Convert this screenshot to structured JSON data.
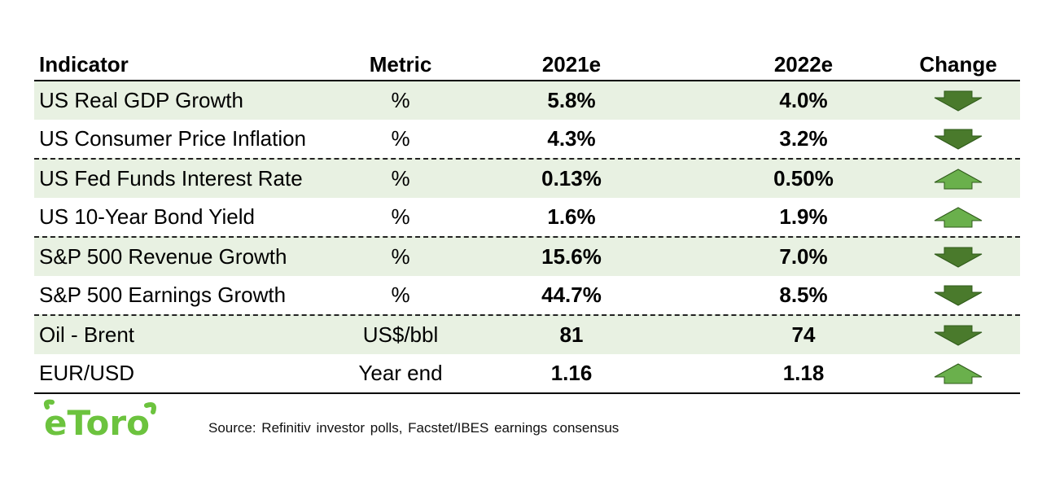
{
  "colors": {
    "shade": "#e8f1e2",
    "arrow_down": "#4a7a2c",
    "arrow_up": "#6ab04c",
    "logo_green": "#6cc33e"
  },
  "chart_data": {
    "type": "table",
    "columns": [
      "Indicator",
      "Metric",
      "2021e",
      "2022e",
      "Change"
    ],
    "rows": [
      {
        "indicator": "US Real GDP Growth",
        "metric": "%",
        "y2021": "5.8%",
        "y2022": "4.0%",
        "change": "down"
      },
      {
        "indicator": "US Consumer Price Inflation",
        "metric": "%",
        "y2021": "4.3%",
        "y2022": "3.2%",
        "change": "down"
      },
      {
        "indicator": "US Fed Funds Interest Rate",
        "metric": "%",
        "y2021": "0.13%",
        "y2022": "0.50%",
        "change": "up"
      },
      {
        "indicator": "US 10-Year Bond Yield",
        "metric": "%",
        "y2021": "1.6%",
        "y2022": "1.9%",
        "change": "up"
      },
      {
        "indicator": "S&P 500 Revenue Growth",
        "metric": "%",
        "y2021": "15.6%",
        "y2022": "7.0%",
        "change": "down"
      },
      {
        "indicator": "S&P 500 Earnings Growth",
        "metric": "%",
        "y2021": "44.7%",
        "y2022": "8.5%",
        "change": "down"
      },
      {
        "indicator": "Oil - Brent",
        "metric": "US$/bbl",
        "y2021": "81",
        "y2022": "74",
        "change": "down"
      },
      {
        "indicator": "EUR/USD",
        "metric": "Year end",
        "y2021": "1.16",
        "y2022": "1.18",
        "change": "up"
      }
    ]
  },
  "footer": {
    "logo_text": "eToro",
    "source": "Source: Refinitiv investor polls, Facstet/IBES earnings consensus"
  }
}
